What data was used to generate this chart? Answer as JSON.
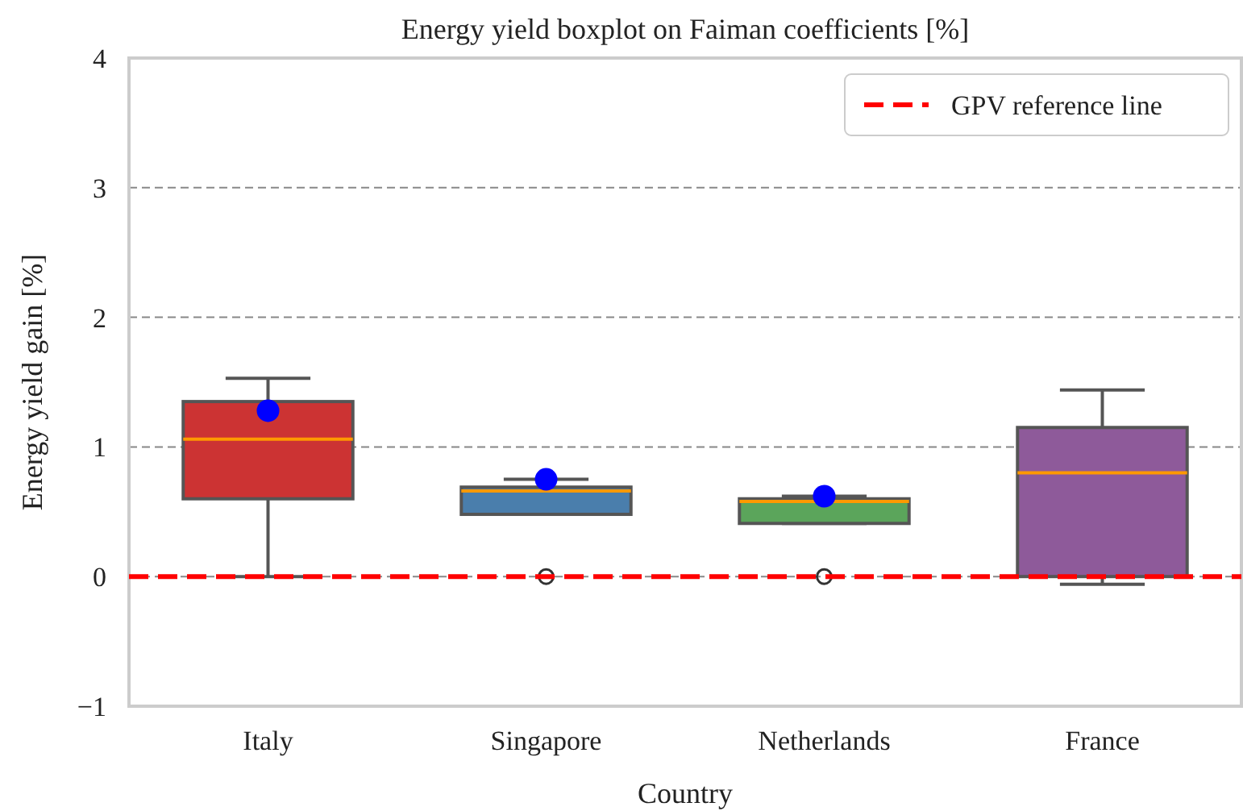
{
  "chart_data": {
    "type": "box",
    "title": "Energy yield boxplot on Faiman coefficients [%]",
    "xlabel": "Country",
    "ylabel": "Energy yield gain [%]",
    "categories": [
      "Italy",
      "Singapore",
      "Netherlands",
      "France"
    ],
    "colors": [
      "#cc3333",
      "#4a7eac",
      "#5ba55b",
      "#8e5a9a"
    ],
    "boxes": [
      {
        "low": 0,
        "q1": 0.6,
        "median": 1.06,
        "q3": 1.35,
        "high": 1.53,
        "mean": 1.28
      },
      {
        "low": 0.48,
        "q1": 0.48,
        "median": 0.66,
        "q3": 0.69,
        "high": 0.75,
        "mean": 0.75,
        "outliers": [
          0
        ]
      },
      {
        "low": 0.41,
        "q1": 0.41,
        "median": 0.58,
        "q3": 0.6,
        "high": 0.62,
        "mean": 0.62,
        "outliers": [
          0
        ]
      },
      {
        "low": -0.06,
        "q1": 0,
        "median": 0.8,
        "q3": 1.15,
        "high": 1.44
      }
    ],
    "ylim": [
      -1,
      4
    ],
    "yticks": [
      {
        "value": -1,
        "label": "−1"
      },
      0,
      1,
      2,
      3,
      4
    ],
    "grid": "y",
    "legend": "top right",
    "ref_lines": [
      {
        "axis": "y",
        "value": 0,
        "label": "GPV reference line",
        "color": "#ff0000",
        "line_style": "dashed"
      }
    ]
  }
}
